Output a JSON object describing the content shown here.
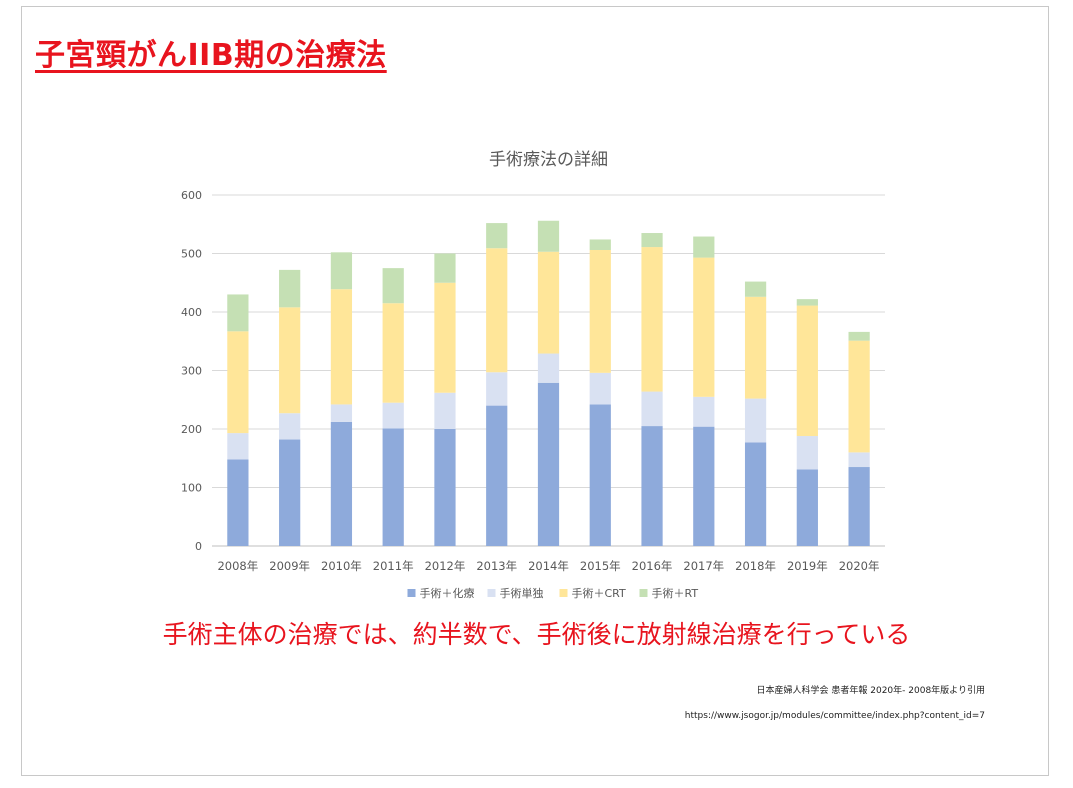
{
  "slide": {
    "title": "子宮頸がんIIB期の治療法",
    "conclusion": "手術主体の治療では、約半数で、手術後に放射線治療を行っている",
    "source_reference": "日本産婦人科学会 患者年報 2020年- 2008年版より引用",
    "source_url": "https://www.jsogor.jp/modules/committee/index.php?content_id=7"
  },
  "chart_data": {
    "type": "bar",
    "stacked": true,
    "title": "手術療法の詳細",
    "xlabel": "",
    "ylabel": "",
    "ylim": [
      0,
      600
    ],
    "yticks": [
      0,
      100,
      200,
      300,
      400,
      500,
      600
    ],
    "grid": true,
    "legend_position": "bottom",
    "categories": [
      "2008年",
      "2009年",
      "2010年",
      "2011年",
      "2012年",
      "2013年",
      "2014年",
      "2015年",
      "2016年",
      "2017年",
      "2018年",
      "2019年",
      "2020年"
    ],
    "series": [
      {
        "name": "手術＋化療",
        "color": "#8eaadb",
        "values": [
          148,
          182,
          212,
          201,
          200,
          240,
          279,
          242,
          205,
          204,
          177,
          131,
          135
        ]
      },
      {
        "name": "手術単独",
        "color": "#d9e1f2",
        "values": [
          45,
          45,
          30,
          44,
          62,
          57,
          50,
          54,
          59,
          51,
          75,
          57,
          25
        ]
      },
      {
        "name": "手術＋CRT",
        "color": "#ffe699",
        "values": [
          174,
          181,
          197,
          170,
          188,
          212,
          174,
          210,
          247,
          238,
          174,
          223,
          191
        ]
      },
      {
        "name": "手術＋RT",
        "color": "#c5e0b4",
        "values": [
          63,
          64,
          63,
          60,
          50,
          43,
          53,
          18,
          24,
          36,
          26,
          11,
          15
        ]
      }
    ]
  }
}
